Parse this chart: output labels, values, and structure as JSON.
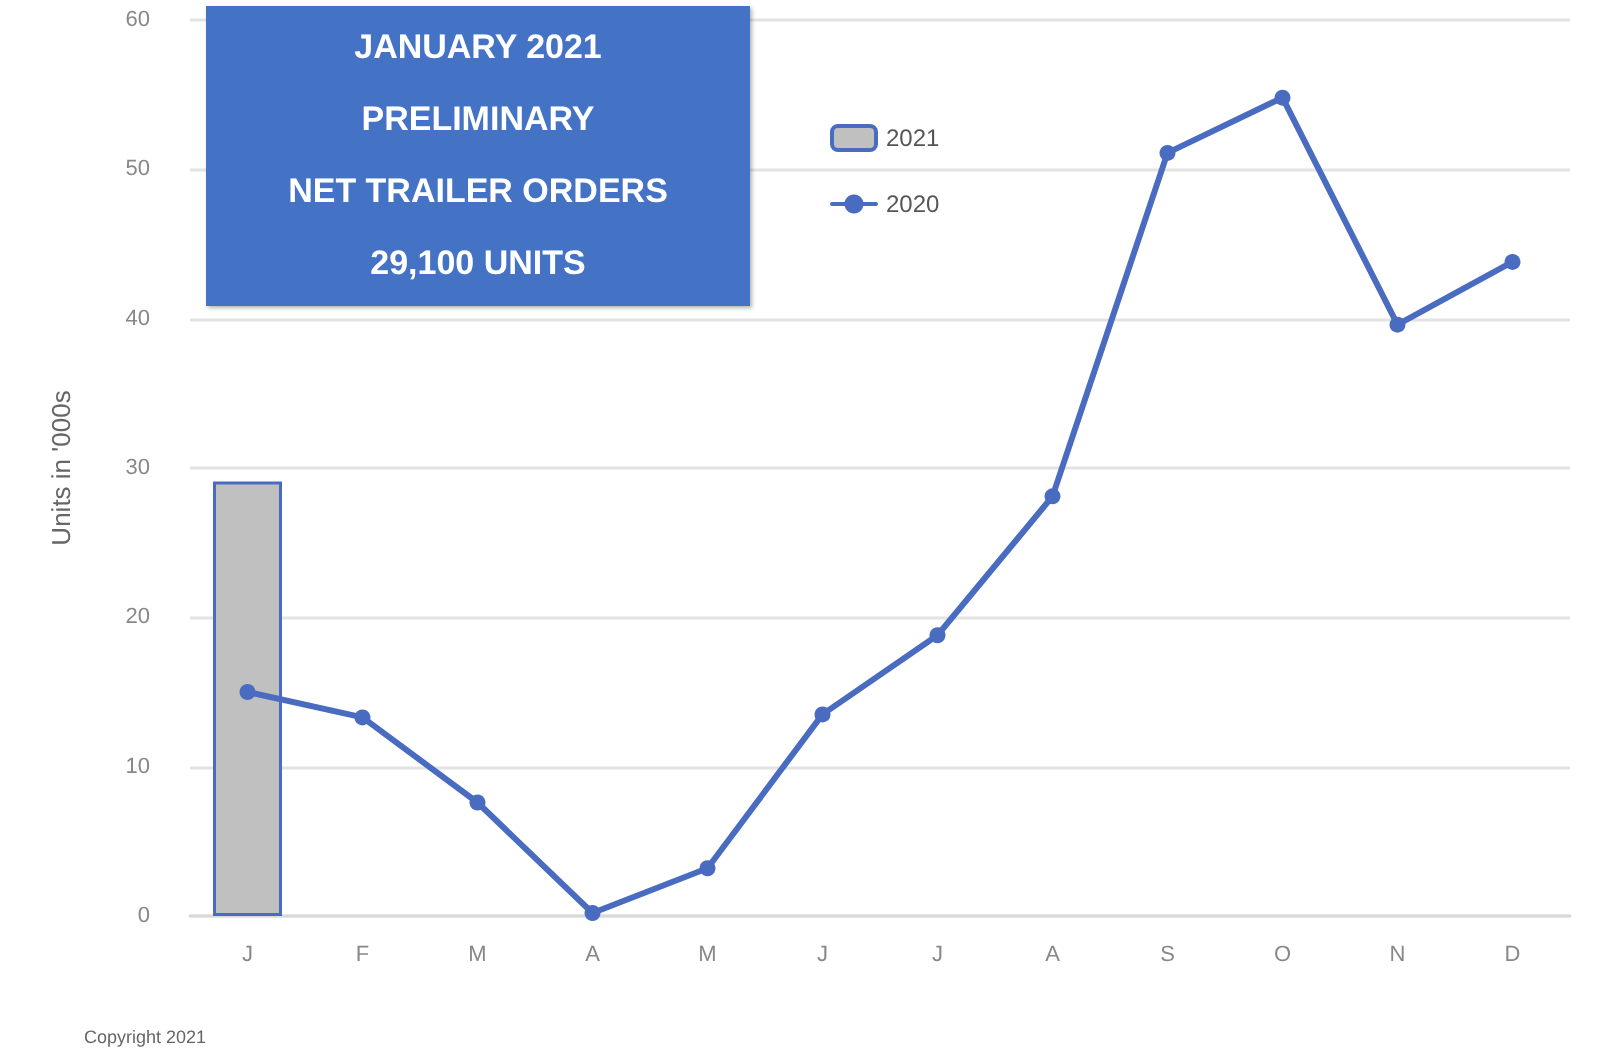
{
  "chart_data": {
    "type": "bar",
    "title": "JANUARY 2021\nPRELIMINARY\nNET TRAILER ORDERS\n29,100 UNITS",
    "ylabel": "Units in '000s",
    "categories": [
      "J",
      "F",
      "M",
      "A",
      "M",
      "J",
      "J",
      "A",
      "S",
      "O",
      "N",
      "D"
    ],
    "series": [
      {
        "name": "2021",
        "color": "#c0c0c0",
        "values": [
          29.1,
          null,
          null,
          null,
          null,
          null,
          null,
          null,
          null,
          null,
          null,
          null
        ]
      },
      {
        "name": "2020",
        "type": "line",
        "color": "#4a6cc0",
        "values": [
          15.0,
          13.3,
          7.6,
          0.2,
          3.2,
          13.5,
          18.8,
          28.1,
          51.1,
          54.8,
          39.6,
          43.8
        ]
      }
    ],
    "ylim": [
      0,
      60
    ],
    "yticks": [
      0,
      10,
      20,
      30,
      40,
      50,
      60
    ],
    "grid": "y",
    "legend": "top",
    "marker": "circle",
    "line_style": "solid",
    "annotations": [
      "Copyright 2021"
    ]
  }
}
